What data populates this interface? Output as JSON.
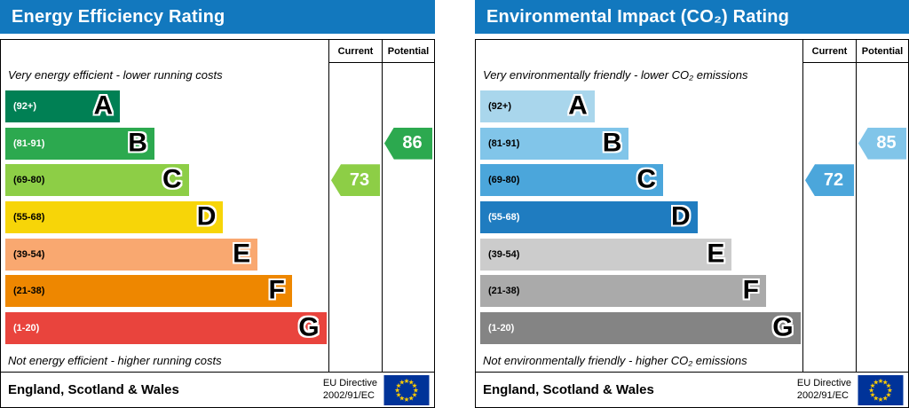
{
  "charts": [
    {
      "title": "Energy Efficiency Rating",
      "header_color": "#1278be",
      "columns": {
        "current": "Current",
        "potential": "Potential"
      },
      "top_note": "Very energy efficient - lower running costs",
      "bottom_note": "Not energy efficient - higher running costs",
      "bands": [
        {
          "grade": "A",
          "range": "(92+)",
          "color": "#008054",
          "range_color": "#ffffff",
          "width_pct": 35
        },
        {
          "grade": "B",
          "range": "(81-91)",
          "color": "#2ca94f",
          "range_color": "#ffffff",
          "width_pct": 45.5
        },
        {
          "grade": "C",
          "range": "(69-80)",
          "color": "#8dce46",
          "range_color": "#000000",
          "width_pct": 56
        },
        {
          "grade": "D",
          "range": "(55-68)",
          "color": "#f7d508",
          "range_color": "#000000",
          "width_pct": 66.5
        },
        {
          "grade": "E",
          "range": "(39-54)",
          "color": "#f9a870",
          "range_color": "#000000",
          "width_pct": 77
        },
        {
          "grade": "F",
          "range": "(21-38)",
          "color": "#ee8700",
          "range_color": "#000000",
          "width_pct": 87.5
        },
        {
          "grade": "G",
          "range": "(1-20)",
          "color": "#e9443d",
          "range_color": "#ffffff",
          "width_pct": 98
        }
      ],
      "current": {
        "value": "73",
        "band_index": 2,
        "color": "#8dce46"
      },
      "potential": {
        "value": "86",
        "band_index": 1,
        "color": "#2ca94f"
      },
      "footer": {
        "region": "England, Scotland & Wales",
        "directive_line1": "EU Directive",
        "directive_line2": "2002/91/EC"
      }
    },
    {
      "title": "Environmental Impact (CO₂) Rating",
      "header_color": "#1278be",
      "columns": {
        "current": "Current",
        "potential": "Potential"
      },
      "top_note": "Very environmentally friendly - lower CO₂ emissions",
      "bottom_note": "Not environmentally friendly - higher CO₂ emissions",
      "bands": [
        {
          "grade": "A",
          "range": "(92+)",
          "color": "#a9d6ec",
          "range_color": "#000000",
          "width_pct": 35
        },
        {
          "grade": "B",
          "range": "(81-91)",
          "color": "#81c5e9",
          "range_color": "#000000",
          "width_pct": 45.5
        },
        {
          "grade": "C",
          "range": "(69-80)",
          "color": "#4ba6db",
          "range_color": "#000000",
          "width_pct": 56
        },
        {
          "grade": "D",
          "range": "(55-68)",
          "color": "#1f7cc0",
          "range_color": "#ffffff",
          "width_pct": 66.5
        },
        {
          "grade": "E",
          "range": "(39-54)",
          "color": "#cccccc",
          "range_color": "#000000",
          "width_pct": 77
        },
        {
          "grade": "F",
          "range": "(21-38)",
          "color": "#aaaaaa",
          "range_color": "#000000",
          "width_pct": 87.5
        },
        {
          "grade": "G",
          "range": "(1-20)",
          "color": "#848484",
          "range_color": "#ffffff",
          "width_pct": 98
        }
      ],
      "current": {
        "value": "72",
        "band_index": 2,
        "color": "#4ba6db"
      },
      "potential": {
        "value": "85",
        "band_index": 1,
        "color": "#81c5e9"
      },
      "footer": {
        "region": "England, Scotland & Wales",
        "directive_line1": "EU Directive",
        "directive_line2": "2002/91/EC"
      }
    }
  ],
  "chart_data": [
    {
      "type": "bar",
      "title": "Energy Efficiency Rating",
      "categories": [
        "A",
        "B",
        "C",
        "D",
        "E",
        "F",
        "G"
      ],
      "band_ranges": [
        "92+",
        "81-91",
        "69-80",
        "55-68",
        "39-54",
        "21-38",
        "1-20"
      ],
      "band_colors": [
        "#008054",
        "#2ca94f",
        "#8dce46",
        "#f7d508",
        "#f9a870",
        "#ee8700",
        "#e9443d"
      ],
      "series": [
        {
          "name": "Current",
          "value": 73,
          "band": "C"
        },
        {
          "name": "Potential",
          "value": 86,
          "band": "B"
        }
      ],
      "value_range": [
        1,
        100
      ],
      "annotation_top": "Very energy efficient - lower running costs",
      "annotation_bottom": "Not energy efficient - higher running costs",
      "region": "England, Scotland & Wales",
      "directive": "EU Directive 2002/91/EC"
    },
    {
      "type": "bar",
      "title": "Environmental Impact (CO₂) Rating",
      "categories": [
        "A",
        "B",
        "C",
        "D",
        "E",
        "F",
        "G"
      ],
      "band_ranges": [
        "92+",
        "81-91",
        "69-80",
        "55-68",
        "39-54",
        "21-38",
        "1-20"
      ],
      "band_colors": [
        "#a9d6ec",
        "#81c5e9",
        "#4ba6db",
        "#1f7cc0",
        "#cccccc",
        "#aaaaaa",
        "#848484"
      ],
      "series": [
        {
          "name": "Current",
          "value": 72,
          "band": "C"
        },
        {
          "name": "Potential",
          "value": 85,
          "band": "B"
        }
      ],
      "value_range": [
        1,
        100
      ],
      "annotation_top": "Very environmentally friendly - lower CO₂ emissions",
      "annotation_bottom": "Not environmentally friendly - higher CO₂ emissions",
      "region": "England, Scotland & Wales",
      "directive": "EU Directive 2002/91/EC"
    }
  ]
}
